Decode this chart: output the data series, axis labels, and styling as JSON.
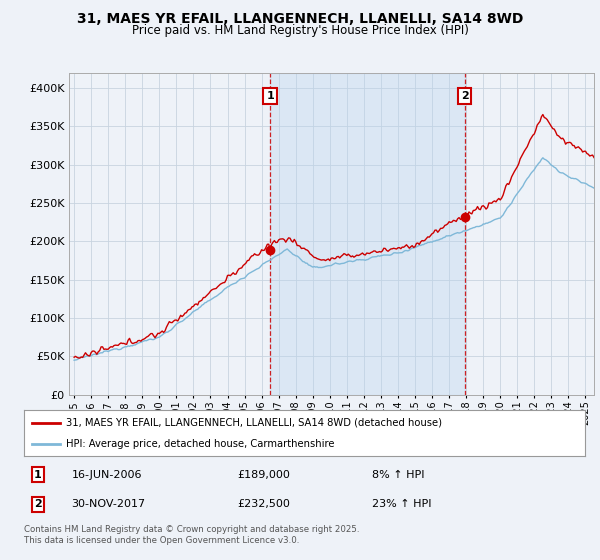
{
  "title": "31, MAES YR EFAIL, LLANGENNECH, LLANELLI, SA14 8WD",
  "subtitle": "Price paid vs. HM Land Registry's House Price Index (HPI)",
  "ylabel_ticks": [
    "£0",
    "£50K",
    "£100K",
    "£150K",
    "£200K",
    "£250K",
    "£300K",
    "£350K",
    "£400K"
  ],
  "ytick_values": [
    0,
    50000,
    100000,
    150000,
    200000,
    250000,
    300000,
    350000,
    400000
  ],
  "ylim": [
    0,
    420000
  ],
  "hpi_color": "#7fb8d8",
  "price_color": "#cc0000",
  "vline_color": "#cc0000",
  "shade_color": "#ddeeff",
  "marker1_year": 2006.46,
  "marker2_year": 2017.92,
  "marker1_price": 189000,
  "marker2_price": 232500,
  "legend1": "31, MAES YR EFAIL, LLANGENNECH, LLANELLI, SA14 8WD (detached house)",
  "legend2": "HPI: Average price, detached house, Carmarthenshire",
  "footer": "Contains HM Land Registry data © Crown copyright and database right 2025.\nThis data is licensed under the Open Government Licence v3.0.",
  "background_color": "#eef2f8",
  "plot_bg_color": "#eef2f8",
  "xlim_left": 1994.7,
  "xlim_right": 2025.5
}
